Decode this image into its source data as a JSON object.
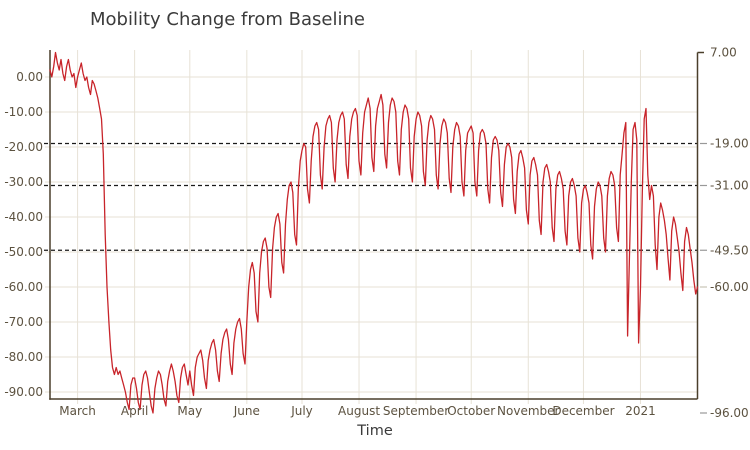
{
  "chart_data": {
    "type": "line",
    "title": "Mobility Change from Baseline",
    "xlabel": "Time",
    "x_start": "2020-02-15",
    "x_end": "2021-02-01",
    "frequency": "daily",
    "x_total_days": 352,
    "ylim": [
      -96,
      7
    ],
    "grid": true,
    "legend": null,
    "x_ticks": [
      {
        "label": "March",
        "day": 15
      },
      {
        "label": "April",
        "day": 46
      },
      {
        "label": "May",
        "day": 76
      },
      {
        "label": "June",
        "day": 107
      },
      {
        "label": "July",
        "day": 137
      },
      {
        "label": "August",
        "day": 168
      },
      {
        "label": "September",
        "day": 199
      },
      {
        "label": "October",
        "day": 229
      },
      {
        "label": "November",
        "day": 260
      },
      {
        "label": "December",
        "day": 290
      },
      {
        "label": "2021",
        "day": 321
      }
    ],
    "y_axis_left": [
      {
        "label": "0.00",
        "value": 0
      },
      {
        "label": "-10.00",
        "value": -10
      },
      {
        "label": "-20.00",
        "value": -20
      },
      {
        "label": "-30.00",
        "value": -30
      },
      {
        "label": "-40.00",
        "value": -40
      },
      {
        "label": "-50.00",
        "value": -50
      },
      {
        "label": "-60.00",
        "value": -60
      },
      {
        "label": "-70.00",
        "value": -70
      },
      {
        "label": "-80.00",
        "value": -80
      },
      {
        "label": "-90.00",
        "value": -90
      }
    ],
    "y_axis_right": [
      {
        "label": "7.00",
        "value": 7,
        "tick": "dark"
      },
      {
        "label": "-19.00",
        "value": -19,
        "tick": "gray"
      },
      {
        "label": "-31.00",
        "value": -31,
        "tick": "gray"
      },
      {
        "label": "-49.50",
        "value": -49.5,
        "tick": "gray"
      },
      {
        "label": "-60.00",
        "value": -60,
        "tick": "light"
      },
      {
        "label": "-96.00",
        "value": -96,
        "tick": "gray"
      }
    ],
    "dashed_values": [
      -19,
      -31,
      -49.5
    ],
    "colors": {
      "line": "#c8242a",
      "grid": "#e7e2d6",
      "axis": "#4a3f2b",
      "dashed": "#1a1a1a",
      "gray_tick": "#999999",
      "light_tick": "#c9c4b6",
      "tick_label": "#5c5240",
      "title": "#3b3b3b"
    },
    "series": [
      {
        "name": "mobility_change",
        "color": "#c8242a",
        "values": [
          2,
          0,
          3,
          7,
          4,
          2,
          5,
          1,
          -1,
          3,
          5,
          2,
          0,
          1,
          -3,
          0,
          2,
          4,
          1,
          -1,
          0,
          -3,
          -5,
          -1,
          -2,
          -4,
          -6,
          -9,
          -12,
          -22,
          -45,
          -60,
          -70,
          -78,
          -83,
          -85,
          -83,
          -85,
          -84,
          -86,
          -88,
          -90,
          -93,
          -95,
          -88,
          -86,
          -86,
          -89,
          -93,
          -95,
          -88,
          -85,
          -84,
          -86,
          -90,
          -94,
          -96,
          -89,
          -86,
          -84,
          -85,
          -88,
          -92,
          -94,
          -87,
          -84,
          -82,
          -84,
          -87,
          -91,
          -93,
          -86,
          -83,
          -82,
          -85,
          -88,
          -84,
          -88,
          -91,
          -83,
          -80,
          -79,
          -78,
          -81,
          -86,
          -89,
          -81,
          -78,
          -76,
          -75,
          -78,
          -84,
          -87,
          -79,
          -75,
          -73,
          -72,
          -75,
          -82,
          -85,
          -76,
          -72,
          -70,
          -69,
          -72,
          -79,
          -82,
          -70,
          -60,
          -55,
          -53,
          -56,
          -67,
          -70,
          -56,
          -50,
          -47,
          -46,
          -49,
          -60,
          -63,
          -49,
          -43,
          -40,
          -39,
          -42,
          -53,
          -56,
          -42,
          -35,
          -31,
          -30,
          -33,
          -45,
          -48,
          -32,
          -24,
          -21,
          -19,
          -20,
          -32,
          -36,
          -24,
          -17,
          -14,
          -13,
          -15,
          -28,
          -32,
          -20,
          -14,
          -12,
          -11,
          -13,
          -26,
          -30,
          -18,
          -13,
          -11,
          -10,
          -12,
          -25,
          -29,
          -17,
          -12,
          -10,
          -9,
          -11,
          -24,
          -28,
          -16,
          -10,
          -8,
          -6,
          -9,
          -23,
          -27,
          -14,
          -9,
          -7,
          -5,
          -8,
          -22,
          -26,
          -13,
          -8,
          -6,
          -7,
          -10,
          -24,
          -28,
          -15,
          -10,
          -8,
          -9,
          -12,
          -26,
          -30,
          -17,
          -12,
          -10,
          -11,
          -14,
          -27,
          -31,
          -18,
          -13,
          -11,
          -12,
          -15,
          -28,
          -32,
          -19,
          -14,
          -12,
          -13,
          -16,
          -29,
          -33,
          -20,
          -15,
          -13,
          -14,
          -17,
          -30,
          -34,
          -21,
          -16,
          -15,
          -14,
          -16,
          -30,
          -34,
          -21,
          -16,
          -15,
          -16,
          -19,
          -32,
          -36,
          -23,
          -18,
          -17,
          -18,
          -21,
          -33,
          -37,
          -25,
          -20,
          -19,
          -20,
          -23,
          -35,
          -39,
          -27,
          -22,
          -21,
          -23,
          -26,
          -38,
          -42,
          -28,
          -24,
          -23,
          -25,
          -28,
          -41,
          -45,
          -30,
          -26,
          -25,
          -27,
          -30,
          -43,
          -47,
          -32,
          -28,
          -27,
          -29,
          -32,
          -44,
          -48,
          -34,
          -30,
          -29,
          -31,
          -34,
          -46,
          -50,
          -36,
          -32,
          -31,
          -33,
          -36,
          -48,
          -52,
          -37,
          -32,
          -30,
          -31,
          -34,
          -46,
          -50,
          -34,
          -29,
          -27,
          -28,
          -31,
          -43,
          -47,
          -28,
          -22,
          -16,
          -13,
          -74,
          -52,
          -30,
          -15,
          -13,
          -18,
          -76,
          -60,
          -33,
          -12,
          -9,
          -28,
          -35,
          -31,
          -34,
          -48,
          -55,
          -40,
          -36,
          -38,
          -41,
          -45,
          -52,
          -58,
          -44,
          -40,
          -42,
          -46,
          -50,
          -56,
          -61,
          -47,
          -43,
          -45,
          -49,
          -53,
          -58,
          -62,
          -60
        ]
      }
    ]
  }
}
